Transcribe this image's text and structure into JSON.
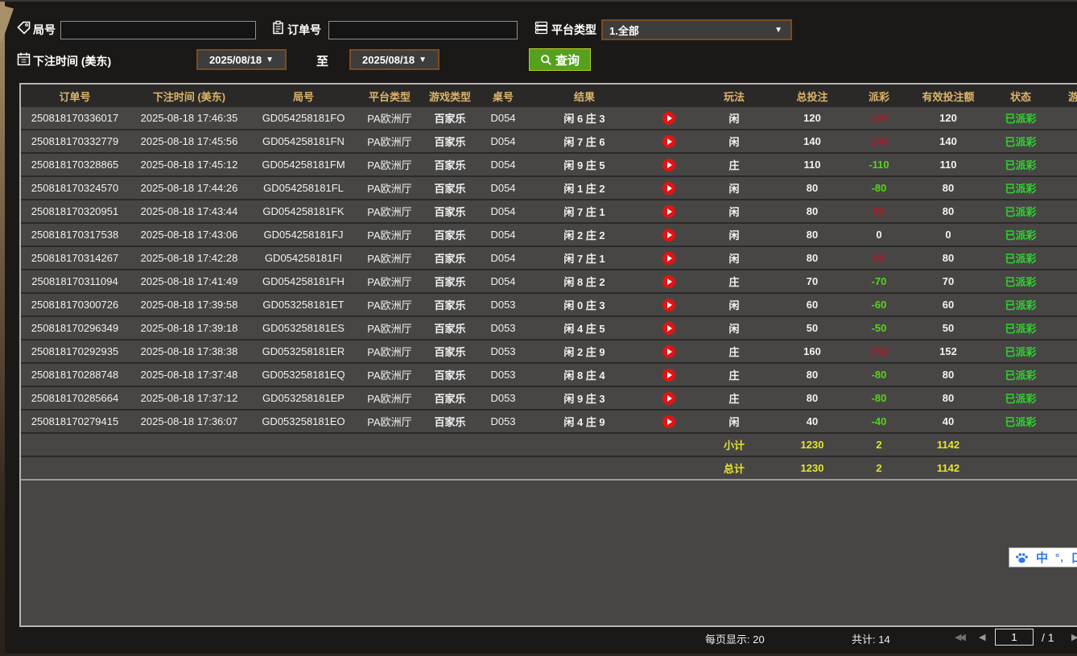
{
  "filters": {
    "round": {
      "label": "局号",
      "value": ""
    },
    "order": {
      "label": "订单号",
      "value": ""
    },
    "platform": {
      "label": "平台类型",
      "value": "1.全部"
    },
    "bet_time": {
      "label": "下注时间 (美东)"
    },
    "date_from": "2025/08/18",
    "date_to": "2025/08/18",
    "to_label": "至",
    "query_label": "查询"
  },
  "table": {
    "columns": [
      "订单号",
      "下注时间 (美东)",
      "局号",
      "平台类型",
      "游戏类型",
      "桌号",
      "结果",
      "",
      "玩法",
      "总投注",
      "派彩",
      "有效投注额",
      "状态",
      "游戏"
    ],
    "rows": [
      {
        "order": "250818170336017",
        "time": "2025-08-18 17:46:35",
        "round": "GD054258181FO",
        "platform": "PA欧洲厅",
        "game_type": "百家乐",
        "table_no": "D054",
        "result": "闲 6 庄 3",
        "bet": "闲",
        "total_bet": "120",
        "payout": "120",
        "payout_class": "pos",
        "valid_bet": "120",
        "status": "已派彩",
        "game": "-"
      },
      {
        "order": "250818170332779",
        "time": "2025-08-18 17:45:56",
        "round": "GD054258181FN",
        "platform": "PA欧洲厅",
        "game_type": "百家乐",
        "table_no": "D054",
        "result": "闲 7 庄 6",
        "bet": "闲",
        "total_bet": "140",
        "payout": "140",
        "payout_class": "pos",
        "valid_bet": "140",
        "status": "已派彩",
        "game": "-"
      },
      {
        "order": "250818170328865",
        "time": "2025-08-18 17:45:12",
        "round": "GD054258181FM",
        "platform": "PA欧洲厅",
        "game_type": "百家乐",
        "table_no": "D054",
        "result": "闲 9 庄 5",
        "bet": "庄",
        "total_bet": "110",
        "payout": "-110",
        "payout_class": "neg",
        "valid_bet": "110",
        "status": "已派彩",
        "game": "-"
      },
      {
        "order": "250818170324570",
        "time": "2025-08-18 17:44:26",
        "round": "GD054258181FL",
        "platform": "PA欧洲厅",
        "game_type": "百家乐",
        "table_no": "D054",
        "result": "闲 1 庄 2",
        "bet": "闲",
        "total_bet": "80",
        "payout": "-80",
        "payout_class": "neg",
        "valid_bet": "80",
        "status": "已派彩",
        "game": "-"
      },
      {
        "order": "250818170320951",
        "time": "2025-08-18 17:43:44",
        "round": "GD054258181FK",
        "platform": "PA欧洲厅",
        "game_type": "百家乐",
        "table_no": "D054",
        "result": "闲 7 庄 1",
        "bet": "闲",
        "total_bet": "80",
        "payout": "80",
        "payout_class": "pos",
        "valid_bet": "80",
        "status": "已派彩",
        "game": "-"
      },
      {
        "order": "250818170317538",
        "time": "2025-08-18 17:43:06",
        "round": "GD054258181FJ",
        "platform": "PA欧洲厅",
        "game_type": "百家乐",
        "table_no": "D054",
        "result": "闲 2 庄 2",
        "bet": "闲",
        "total_bet": "80",
        "payout": "0",
        "payout_class": "zero",
        "valid_bet": "0",
        "status": "已派彩",
        "game": "-"
      },
      {
        "order": "250818170314267",
        "time": "2025-08-18 17:42:28",
        "round": "GD054258181FI",
        "platform": "PA欧洲厅",
        "game_type": "百家乐",
        "table_no": "D054",
        "result": "闲 7 庄 1",
        "bet": "闲",
        "total_bet": "80",
        "payout": "80",
        "payout_class": "pos",
        "valid_bet": "80",
        "status": "已派彩",
        "game": "-"
      },
      {
        "order": "250818170311094",
        "time": "2025-08-18 17:41:49",
        "round": "GD054258181FH",
        "platform": "PA欧洲厅",
        "game_type": "百家乐",
        "table_no": "D054",
        "result": "闲 8 庄 2",
        "bet": "庄",
        "total_bet": "70",
        "payout": "-70",
        "payout_class": "neg",
        "valid_bet": "70",
        "status": "已派彩",
        "game": "-"
      },
      {
        "order": "250818170300726",
        "time": "2025-08-18 17:39:58",
        "round": "GD053258181ET",
        "platform": "PA欧洲厅",
        "game_type": "百家乐",
        "table_no": "D053",
        "result": "闲 0 庄 3",
        "bet": "闲",
        "total_bet": "60",
        "payout": "-60",
        "payout_class": "neg",
        "valid_bet": "60",
        "status": "已派彩",
        "game": "-"
      },
      {
        "order": "250818170296349",
        "time": "2025-08-18 17:39:18",
        "round": "GD053258181ES",
        "platform": "PA欧洲厅",
        "game_type": "百家乐",
        "table_no": "D053",
        "result": "闲 4 庄 5",
        "bet": "闲",
        "total_bet": "50",
        "payout": "-50",
        "payout_class": "neg",
        "valid_bet": "50",
        "status": "已派彩",
        "game": "-"
      },
      {
        "order": "250818170292935",
        "time": "2025-08-18 17:38:38",
        "round": "GD053258181ER",
        "platform": "PA欧洲厅",
        "game_type": "百家乐",
        "table_no": "D053",
        "result": "闲 2 庄 9",
        "bet": "庄",
        "total_bet": "160",
        "payout": "152",
        "payout_class": "pos",
        "valid_bet": "152",
        "status": "已派彩",
        "game": "-"
      },
      {
        "order": "250818170288748",
        "time": "2025-08-18 17:37:48",
        "round": "GD053258181EQ",
        "platform": "PA欧洲厅",
        "game_type": "百家乐",
        "table_no": "D053",
        "result": "闲 8 庄 4",
        "bet": "庄",
        "total_bet": "80",
        "payout": "-80",
        "payout_class": "neg",
        "valid_bet": "80",
        "status": "已派彩",
        "game": "-"
      },
      {
        "order": "250818170285664",
        "time": "2025-08-18 17:37:12",
        "round": "GD053258181EP",
        "platform": "PA欧洲厅",
        "game_type": "百家乐",
        "table_no": "D053",
        "result": "闲 9 庄 3",
        "bet": "庄",
        "total_bet": "80",
        "payout": "-80",
        "payout_class": "neg",
        "valid_bet": "80",
        "status": "已派彩",
        "game": "-"
      },
      {
        "order": "250818170279415",
        "time": "2025-08-18 17:36:07",
        "round": "GD053258181EO",
        "platform": "PA欧洲厅",
        "game_type": "百家乐",
        "table_no": "D053",
        "result": "闲 4 庄 9",
        "bet": "闲",
        "total_bet": "40",
        "payout": "-40",
        "payout_class": "neg",
        "valid_bet": "40",
        "status": "已派彩",
        "game": "-"
      }
    ],
    "summary_rows": [
      {
        "label": "小计",
        "total_bet": "1230",
        "payout": "2",
        "valid_bet": "1142"
      },
      {
        "label": "总计",
        "total_bet": "1230",
        "payout": "2",
        "valid_bet": "1142"
      }
    ]
  },
  "pagination": {
    "per_page": "每页显示: 20",
    "total": "共计: 14",
    "page": "1",
    "of": "/  1"
  },
  "ime": {
    "mode": "中",
    "punct": "°,",
    "partial": "口"
  },
  "colors": {
    "header_gold": "#dcb56b",
    "win_red": "#a81b28",
    "loss_green": "#55d41c",
    "status_green": "#2ed42e",
    "summary_yellow": "#e8e32a",
    "query_green": "#55a11e"
  }
}
